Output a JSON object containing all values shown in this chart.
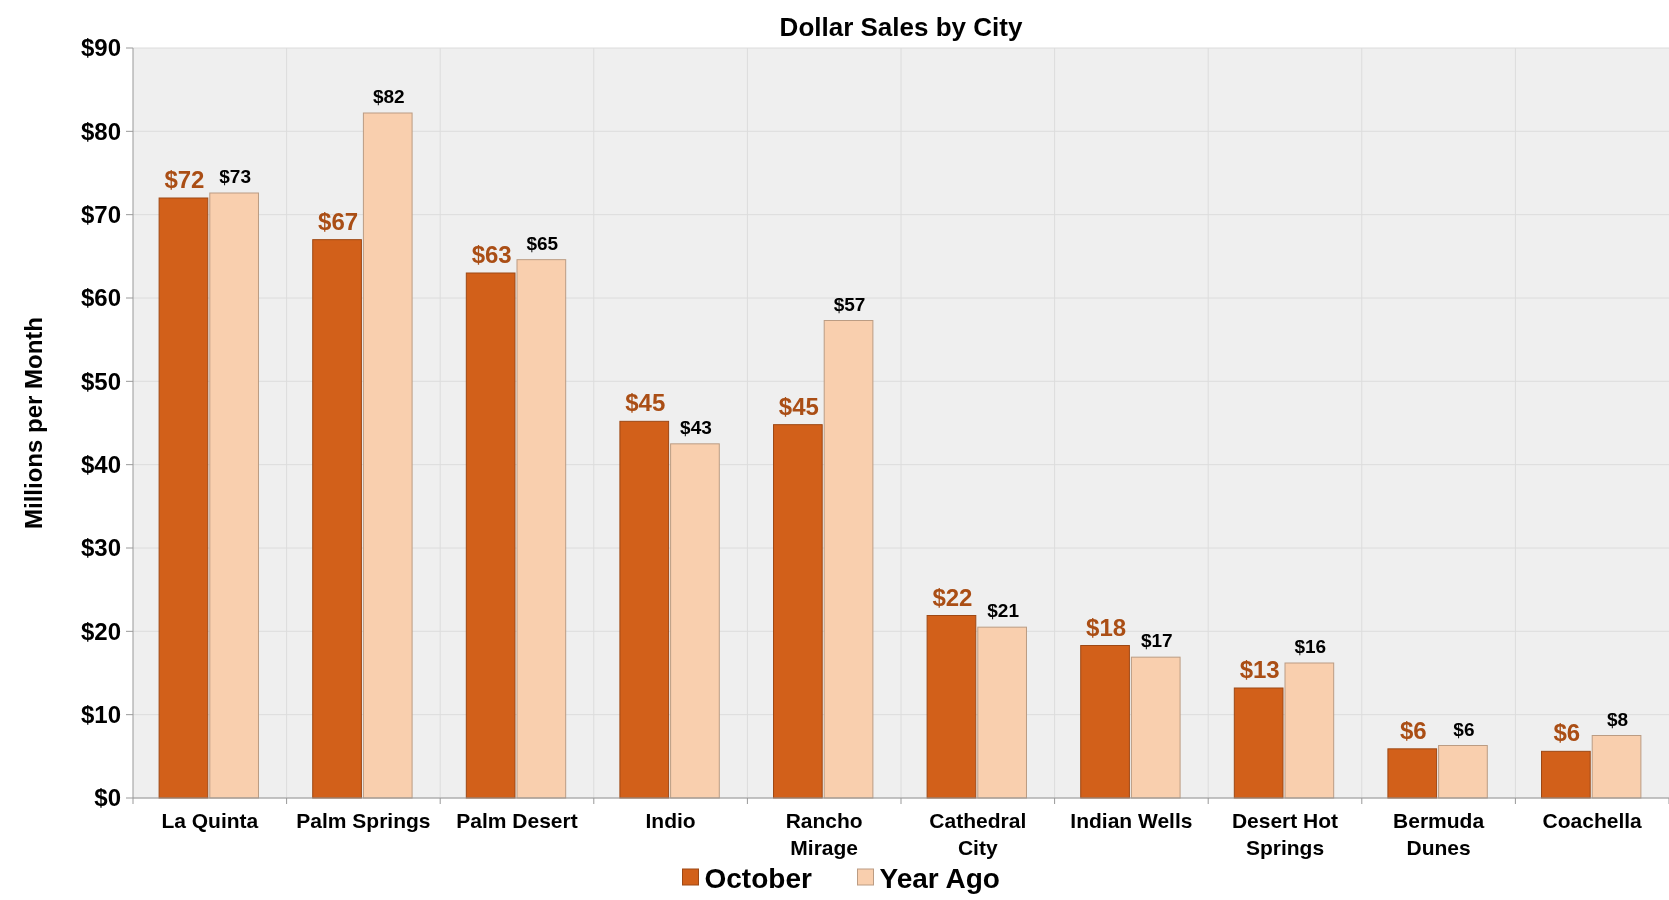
{
  "chart_data": {
    "type": "bar",
    "title": "Dollar Sales by City",
    "ylabel": "Millions per Month",
    "categories": [
      "La Quinta",
      "Palm Springs",
      "Palm Desert",
      "Indio",
      "Rancho Mirage",
      "Cathedral City",
      "Indian Wells",
      "Desert Hot Springs",
      "Bermuda Dunes",
      "Coachella"
    ],
    "series": [
      {
        "name": "October",
        "color": "#d2601a",
        "values": [
          72,
          67,
          63,
          45.2,
          44.8,
          21.9,
          18.3,
          13.2,
          5.9,
          5.6
        ],
        "value_labels": [
          "$72",
          "$67",
          "$63",
          "$45",
          "$45",
          "$22",
          "$18",
          "$13",
          "$6",
          "$6"
        ]
      },
      {
        "name": "Year Ago",
        "color": "#f9cfae",
        "values": [
          72.6,
          82.2,
          64.6,
          42.5,
          57.3,
          20.5,
          16.9,
          16.2,
          6.3,
          7.5
        ],
        "value_labels": [
          "$73",
          "$82",
          "$65",
          "$43",
          "$57",
          "$21",
          "$17",
          "$16",
          "$6",
          "$8"
        ]
      }
    ],
    "ylim": [
      0,
      90
    ],
    "yticks": [
      {
        "value": 0,
        "label": "$0"
      },
      {
        "value": 10,
        "label": "$10"
      },
      {
        "value": 20,
        "label": "$20"
      },
      {
        "value": 30,
        "label": "$30"
      },
      {
        "value": 40,
        "label": "$40"
      },
      {
        "value": 50,
        "label": "$50"
      },
      {
        "value": 60,
        "label": "$60"
      },
      {
        "value": 70,
        "label": "$70"
      },
      {
        "value": 80,
        "label": "$80"
      },
      {
        "value": 90,
        "label": "$90"
      }
    ],
    "grid": true,
    "legend": "bottom"
  }
}
